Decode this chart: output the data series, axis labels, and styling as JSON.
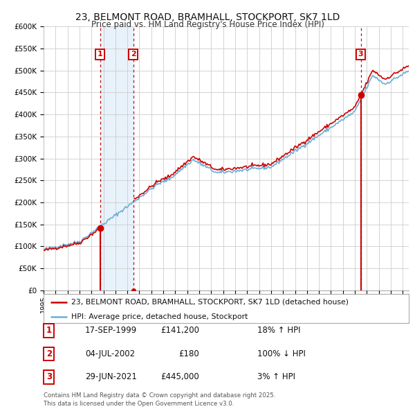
{
  "title": "23, BELMONT ROAD, BRAMHALL, STOCKPORT, SK7 1LD",
  "subtitle": "Price paid vs. HM Land Registry's House Price Index (HPI)",
  "ylim": [
    0,
    600000
  ],
  "yticks": [
    0,
    50000,
    100000,
    150000,
    200000,
    250000,
    300000,
    350000,
    400000,
    450000,
    500000,
    550000,
    600000
  ],
  "ytick_labels": [
    "£0",
    "£50K",
    "£100K",
    "£150K",
    "£200K",
    "£250K",
    "£300K",
    "£350K",
    "£400K",
    "£450K",
    "£500K",
    "£550K",
    "£600K"
  ],
  "xlim_start": 1995.0,
  "xlim_end": 2025.5,
  "xticks": [
    1995,
    1996,
    1997,
    1998,
    1999,
    2000,
    2001,
    2002,
    2003,
    2004,
    2005,
    2006,
    2007,
    2008,
    2009,
    2010,
    2011,
    2012,
    2013,
    2014,
    2015,
    2016,
    2017,
    2018,
    2019,
    2020,
    2021,
    2022,
    2023,
    2024,
    2025
  ],
  "hpi_color": "#6aaed6",
  "price_color": "#cc0000",
  "shade_color": "#e8f2fa",
  "shade_between": [
    1999.71,
    2002.5
  ],
  "transactions": [
    {
      "id": 1,
      "date_num": 1999.71,
      "price": 141200
    },
    {
      "id": 2,
      "date_num": 2002.5,
      "price": 180
    },
    {
      "id": 3,
      "date_num": 2021.49,
      "price": 445000
    }
  ],
  "legend_entries": [
    {
      "label": "23, BELMONT ROAD, BRAMHALL, STOCKPORT, SK7 1LD (detached house)",
      "color": "#cc0000"
    },
    {
      "label": "HPI: Average price, detached house, Stockport",
      "color": "#6aaed6"
    }
  ],
  "table_rows": [
    {
      "num": "1",
      "date": "17-SEP-1999",
      "price": "£141,200",
      "hpi": "18% ↑ HPI"
    },
    {
      "num": "2",
      "date": "04-JUL-2002",
      "price": "£180",
      "hpi": "100% ↓ HPI"
    },
    {
      "num": "3",
      "date": "29-JUN-2021",
      "price": "£445,000",
      "hpi": "3% ↑ HPI"
    }
  ],
  "footnote": "Contains HM Land Registry data © Crown copyright and database right 2025.\nThis data is licensed under the Open Government Licence v3.0.",
  "background_color": "#ffffff",
  "grid_color": "#cccccc"
}
